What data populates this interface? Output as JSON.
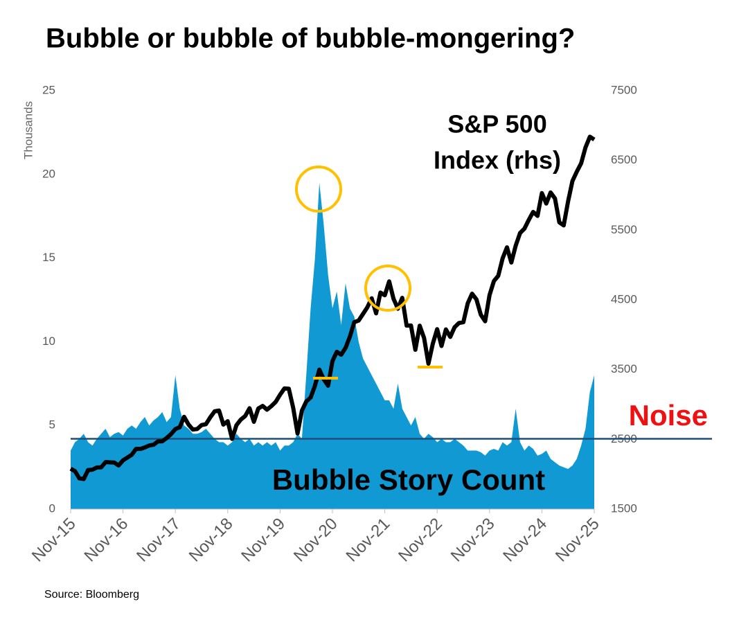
{
  "chart_data": {
    "type": "area_line",
    "title": "Bubble or bubble of bubble-mongering?",
    "y_label": "Thousands",
    "source": "Source: Bloomberg",
    "annotations": [
      "S&P 500",
      "Index (rhs)",
      "Noise",
      "Bubble Story Count"
    ],
    "reference_line": 4.2,
    "categories": [
      "Nov-15",
      null,
      null,
      null,
      null,
      null,
      null,
      null,
      null,
      null,
      null,
      null,
      "Nov-16",
      null,
      null,
      null,
      null,
      null,
      null,
      null,
      null,
      null,
      null,
      null,
      "Nov-17",
      null,
      null,
      null,
      null,
      null,
      null,
      null,
      null,
      null,
      null,
      null,
      "Nov-18",
      null,
      null,
      null,
      null,
      null,
      null,
      null,
      null,
      null,
      null,
      null,
      "Nov-19",
      null,
      null,
      null,
      null,
      null,
      null,
      null,
      null,
      null,
      null,
      null,
      "Nov-20",
      null,
      null,
      null,
      null,
      null,
      null,
      null,
      null,
      null,
      null,
      null,
      "Nov-21",
      null,
      null,
      null,
      null,
      null,
      null,
      null,
      null,
      null,
      null,
      null,
      "Nov-22",
      null,
      null,
      null,
      null,
      null,
      null,
      null,
      null,
      null,
      null,
      null,
      "Nov-23",
      null,
      null,
      null,
      null,
      null,
      null,
      null,
      null,
      null,
      null,
      null,
      "Nov-24",
      null,
      null,
      null,
      null,
      null,
      null,
      null,
      null,
      null,
      null,
      null,
      "Nov-25"
    ],
    "series": [
      {
        "name": "Bubble Story Count",
        "color": "#1199d4",
        "kind": "area",
        "axis": "y",
        "values": [
          3.5,
          4.0,
          4.2,
          4.5,
          4.0,
          3.8,
          4.2,
          4.5,
          4.8,
          4.3,
          4.5,
          4.6,
          4.4,
          4.8,
          5.0,
          4.8,
          5.2,
          5.5,
          5.0,
          5.3,
          5.5,
          5.8,
          5.2,
          5.5,
          8.0,
          6.0,
          5.0,
          4.8,
          4.5,
          4.5,
          4.6,
          4.8,
          4.5,
          4.2,
          4.0,
          4.0,
          3.8,
          4.0,
          4.5,
          4.2,
          4.0,
          4.2,
          3.8,
          4.0,
          3.8,
          4.0,
          3.8,
          4.0,
          3.5,
          3.8,
          3.8,
          4.0,
          4.5,
          4.2,
          8.0,
          12.0,
          15.0,
          19.5,
          17.0,
          14.0,
          12.0,
          13.0,
          11.0,
          13.5,
          12.0,
          11.5,
          10.0,
          9.0,
          8.5,
          8.0,
          7.5,
          7.0,
          6.5,
          6.5,
          6.0,
          7.5,
          6.0,
          5.5,
          5.0,
          5.5,
          4.5,
          4.2,
          4.5,
          4.3,
          4.0,
          4.2,
          4.0,
          4.0,
          4.2,
          4.0,
          3.8,
          3.5,
          3.5,
          3.5,
          3.4,
          3.2,
          3.5,
          3.6,
          3.5,
          4.0,
          3.8,
          4.0,
          6.0,
          4.0,
          3.5,
          3.8,
          3.6,
          3.2,
          3.3,
          3.5,
          3.0,
          2.8,
          2.6,
          2.5,
          2.4,
          2.6,
          3.0,
          3.8,
          4.8,
          7.0,
          8.0
        ]
      },
      {
        "name": "S&P 500 Index",
        "color": "#000000",
        "kind": "line",
        "axis": "y2",
        "values": [
          2080,
          2044,
          1940,
          1932,
          2060,
          2065,
          2097,
          2099,
          2174,
          2171,
          2168,
          2126,
          2199,
          2239,
          2279,
          2364,
          2363,
          2384,
          2412,
          2423,
          2470,
          2472,
          2519,
          2575,
          2648,
          2674,
          2824,
          2714,
          2641,
          2648,
          2705,
          2718,
          2816,
          2902,
          2914,
          2712,
          2760,
          2507,
          2704,
          2784,
          2834,
          2946,
          2752,
          2942,
          2980,
          2926,
          2977,
          3038,
          3141,
          3231,
          3226,
          2954,
          2585,
          2912,
          3044,
          3100,
          3271,
          3500,
          3363,
          3270,
          3622,
          3756,
          3714,
          3811,
          3973,
          4181,
          4204,
          4298,
          4395,
          4523,
          4308,
          4605,
          4567,
          4766,
          4516,
          4374,
          4530,
          4132,
          4132,
          3785,
          4130,
          3955,
          3586,
          3872,
          4080,
          3840,
          4077,
          3970,
          4109,
          4169,
          4180,
          4450,
          4589,
          4508,
          4288,
          4194,
          4568,
          4770,
          4846,
          5096,
          5254,
          5036,
          5278,
          5460,
          5522,
          5648,
          5762,
          5705,
          6032,
          5882,
          6041,
          5955,
          5612,
          5569,
          5912,
          6205,
          6339,
          6460,
          6688,
          6840,
          6800
        ]
      }
    ],
    "ylim": [
      0,
      25
    ],
    "yticks": [
      0,
      5,
      10,
      15,
      20,
      25
    ],
    "y2lim": [
      1500,
      7500
    ],
    "y2ticks": [
      1500,
      2500,
      3500,
      4500,
      5500,
      6500,
      7500
    ],
    "reference_color": "#1f4e79",
    "highlight_color": "#ffc000",
    "noise_color": "#ee1111"
  }
}
